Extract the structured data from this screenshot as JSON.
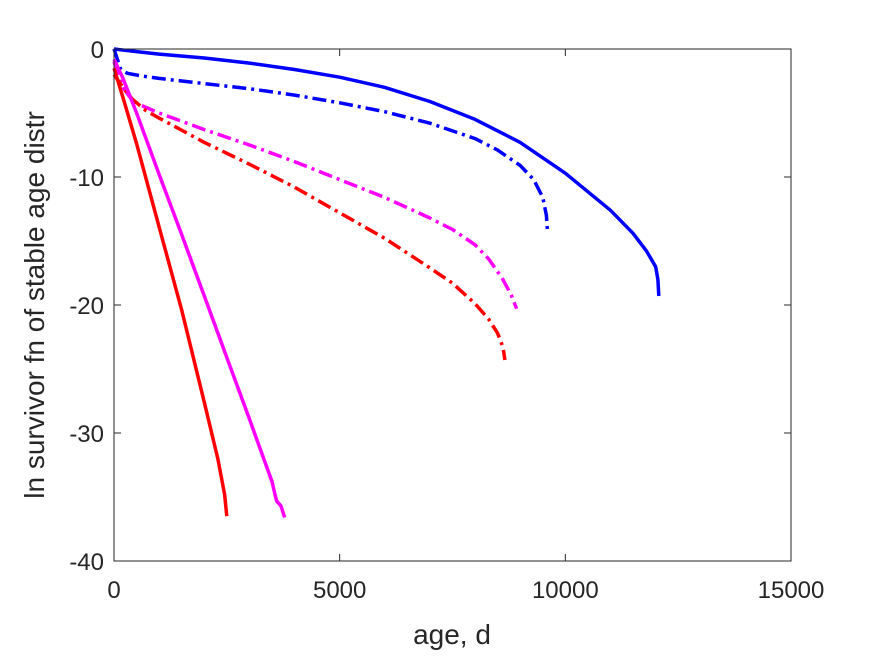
{
  "chart_data": {
    "type": "line",
    "title": "",
    "xlabel": "age, d",
    "ylabel": "ln survivor fn of stable age distr",
    "xlim": [
      0,
      15000
    ],
    "ylim": [
      -40,
      0
    ],
    "xticks": [
      0,
      5000,
      10000,
      15000
    ],
    "yticks": [
      0,
      -10,
      -20,
      -30,
      -40
    ],
    "xtick_labels": [
      "0",
      "5000",
      "10000",
      "15000"
    ],
    "ytick_labels": [
      "0",
      "-10",
      "-20",
      "-30",
      "-40"
    ],
    "grid": false,
    "legend": "none",
    "series": [
      {
        "color": "#0000ff",
        "style": "solid",
        "x": [
          0,
          500,
          1000,
          2000,
          3000,
          4000,
          5000,
          6000,
          7000,
          8000,
          9000,
          10000,
          11000,
          11500,
          11800,
          12000,
          12050,
          12070
        ],
        "y": [
          0,
          -0.2,
          -0.4,
          -0.7,
          -1.1,
          -1.6,
          -2.2,
          -3.0,
          -4.1,
          -5.5,
          -7.3,
          -9.7,
          -12.6,
          -14.4,
          -15.8,
          -17.0,
          -18.0,
          -19.3
        ]
      },
      {
        "color": "#0000ff",
        "style": "dashdot",
        "x": [
          0,
          150,
          300,
          600,
          1000,
          2000,
          3000,
          4000,
          5000,
          6000,
          7000,
          8000,
          8500,
          9000,
          9300,
          9500,
          9580,
          9600
        ],
        "y": [
          0,
          -1.6,
          -1.9,
          -2.1,
          -2.3,
          -2.7,
          -3.1,
          -3.6,
          -4.2,
          -4.9,
          -5.8,
          -7.0,
          -7.9,
          -9.1,
          -10.2,
          -11.6,
          -13.0,
          -14.1
        ]
      },
      {
        "color": "#ff00ff",
        "style": "dashdot",
        "x": [
          0,
          200,
          400,
          600,
          1000,
          2000,
          3000,
          4000,
          5000,
          6000,
          7000,
          7500,
          8000,
          8300,
          8600,
          8800,
          8920
        ],
        "y": [
          -1.0,
          -3.0,
          -4.0,
          -4.4,
          -5.0,
          -6.3,
          -7.5,
          -8.8,
          -10.2,
          -11.6,
          -13.2,
          -14.1,
          -15.3,
          -16.4,
          -17.9,
          -19.2,
          -20.3
        ]
      },
      {
        "color": "#ff0000",
        "style": "dashdot",
        "x": [
          0,
          200,
          400,
          700,
          1000,
          2000,
          3000,
          4000,
          5000,
          6000,
          7000,
          7500,
          8000,
          8300,
          8500,
          8620,
          8660
        ],
        "y": [
          -2.0,
          -3.0,
          -3.9,
          -4.8,
          -5.4,
          -7.3,
          -9.0,
          -10.8,
          -12.8,
          -14.8,
          -17.1,
          -18.3,
          -19.9,
          -21.1,
          -22.2,
          -23.3,
          -24.3
        ]
      },
      {
        "color": "#ff00ff",
        "style": "solid",
        "x": [
          0,
          200,
          500,
          1000,
          1500,
          2000,
          2500,
          3000,
          3500,
          3600,
          3700,
          3780
        ],
        "y": [
          -0.8,
          -2.3,
          -5.0,
          -9.8,
          -14.5,
          -19.3,
          -24.1,
          -28.9,
          -33.8,
          -35.3,
          -35.7,
          -36.6
        ]
      },
      {
        "color": "#ff0000",
        "style": "solid",
        "x": [
          0,
          200,
          500,
          1000,
          1500,
          2000,
          2300,
          2450,
          2500
        ],
        "y": [
          -1.5,
          -3.8,
          -7.4,
          -13.9,
          -20.4,
          -27.6,
          -32.0,
          -34.8,
          -36.5
        ]
      }
    ]
  }
}
